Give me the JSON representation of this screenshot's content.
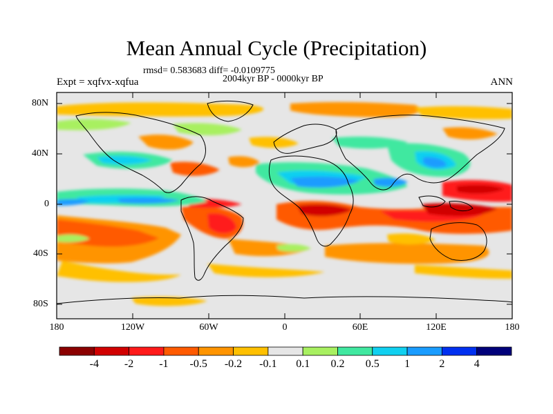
{
  "title": "Mean Annual Cycle (Precipitation)",
  "stats": "rmsd= 0.583683 diff= -0.0109775",
  "period": "2004kyr BP - 0000kyr BP",
  "experiment": "Expt = xqfvx-xqfua",
  "season": "ANN",
  "lat_labels": [
    "80N",
    "40N",
    "0",
    "40S",
    "80S"
  ],
  "lon_labels": [
    "180",
    "120W",
    "60W",
    "0",
    "60E",
    "120E",
    "180"
  ],
  "colorbar": {
    "labels": [
      "-4",
      "-2",
      "-1",
      "-0.5",
      "-0.2",
      "-0.1",
      "0.1",
      "0.2",
      "0.5",
      "1",
      "2",
      "4"
    ],
    "colors": [
      "#8b0000",
      "#d10000",
      "#ff1a1a",
      "#ff5a00",
      "#ff9400",
      "#ffc000",
      "#e6e6e6",
      "#a8f060",
      "#40e8a0",
      "#10d0f0",
      "#1a9cff",
      "#0030f0",
      "#00007a"
    ]
  },
  "colors": {
    "ocean_background": "#e6e6e6",
    "coastline": "#000000"
  }
}
